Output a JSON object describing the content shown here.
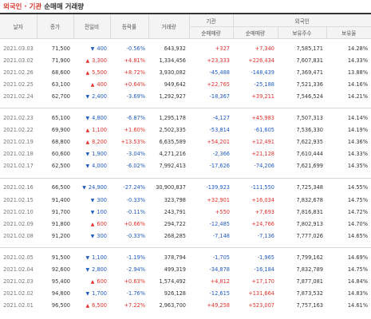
{
  "title": {
    "part1": "외국인 · 기관",
    "part2": "순매매 거래량"
  },
  "header": {
    "date": "날자",
    "close": "종가",
    "change": "전일비",
    "rate": "등락률",
    "volume": "거래량",
    "institution": "기관",
    "foreign": "외국인",
    "inst_net": "순매매량",
    "foreign_net": "순매매량",
    "holdings": "보유주수",
    "holding_rate": "보유율"
  },
  "colors": {
    "up": "#e0312b",
    "down": "#1e5bbf"
  },
  "groups": [
    [
      {
        "date": "2021.03.03",
        "close": "71,500",
        "dir": "down",
        "change": "400",
        "rate": "-0.56%",
        "volume": "643,932",
        "inst": "+327",
        "foreign": "+7,340",
        "holdings": "7,585,171",
        "hrate": "14.28%"
      },
      {
        "date": "2021.03.02",
        "close": "71,900",
        "dir": "up",
        "change": "3,300",
        "rate": "+4.81%",
        "volume": "1,334,456",
        "inst": "+23,333",
        "foreign": "+226,434",
        "holdings": "7,607,831",
        "hrate": "14.33%"
      },
      {
        "date": "2021.02.26",
        "close": "68,600",
        "dir": "up",
        "change": "5,500",
        "rate": "+8.72%",
        "volume": "3,930,082",
        "inst": "-45,488",
        "foreign": "-148,439",
        "holdings": "7,369,471",
        "hrate": "13.88%"
      },
      {
        "date": "2021.02.25",
        "close": "63,100",
        "dir": "up",
        "change": "400",
        "rate": "+0.64%",
        "volume": "949,642",
        "inst": "+22,765",
        "foreign": "-25,188",
        "holdings": "7,521,336",
        "hrate": "14.16%"
      },
      {
        "date": "2021.02.24",
        "close": "62,700",
        "dir": "down",
        "change": "2,400",
        "rate": "-3.69%",
        "volume": "1,292,927",
        "inst": "-18,367",
        "foreign": "+39,211",
        "holdings": "7,546,524",
        "hrate": "14.21%"
      }
    ],
    [
      {
        "date": "2021.02.23",
        "close": "65,100",
        "dir": "down",
        "change": "4,800",
        "rate": "-6.87%",
        "volume": "1,295,178",
        "inst": "-4,127",
        "foreign": "+45,983",
        "holdings": "7,507,313",
        "hrate": "14.14%"
      },
      {
        "date": "2021.02.22",
        "close": "69,900",
        "dir": "up",
        "change": "1,100",
        "rate": "+1.60%",
        "volume": "2,502,335",
        "inst": "-53,814",
        "foreign": "-61,605",
        "holdings": "7,536,330",
        "hrate": "14.19%"
      },
      {
        "date": "2021.02.19",
        "close": "68,800",
        "dir": "up",
        "change": "8,200",
        "rate": "+13.53%",
        "volume": "6,635,589",
        "inst": "+54,201",
        "foreign": "+12,491",
        "holdings": "7,622,935",
        "hrate": "14.36%"
      },
      {
        "date": "2021.02.18",
        "close": "60,600",
        "dir": "down",
        "change": "1,900",
        "rate": "-3.04%",
        "volume": "4,271,216",
        "inst": "-2,366",
        "foreign": "+21,128",
        "holdings": "7,610,444",
        "hrate": "14.33%"
      },
      {
        "date": "2021.02.17",
        "close": "62,500",
        "dir": "down",
        "change": "4,000",
        "rate": "-6.02%",
        "volume": "7,992,413",
        "inst": "-17,626",
        "foreign": "-74,206",
        "holdings": "7,621,699",
        "hrate": "14.35%"
      }
    ],
    [
      {
        "date": "2021.02.16",
        "close": "66,500",
        "dir": "down",
        "change": "24,900",
        "rate": "-27.24%",
        "volume": "30,900,837",
        "inst": "-139,923",
        "foreign": "-111,550",
        "holdings": "7,725,348",
        "hrate": "14.55%"
      },
      {
        "date": "2021.02.15",
        "close": "91,400",
        "dir": "down",
        "change": "300",
        "rate": "-0.33%",
        "volume": "323,798",
        "inst": "+32,901",
        "foreign": "+16,034",
        "holdings": "7,832,678",
        "hrate": "14.75%"
      },
      {
        "date": "2021.02.10",
        "close": "91,700",
        "dir": "down",
        "change": "100",
        "rate": "-0.11%",
        "volume": "243,791",
        "inst": "+550",
        "foreign": "+7,693",
        "holdings": "7,816,831",
        "hrate": "14.72%"
      },
      {
        "date": "2021.02.09",
        "close": "91,800",
        "dir": "up",
        "change": "600",
        "rate": "+0.66%",
        "volume": "294,722",
        "inst": "-12,485",
        "foreign": "+24,766",
        "holdings": "7,802,913",
        "hrate": "14.70%"
      },
      {
        "date": "2021.02.08",
        "close": "91,200",
        "dir": "down",
        "change": "300",
        "rate": "-0.33%",
        "volume": "268,285",
        "inst": "-7,148",
        "foreign": "-7,136",
        "holdings": "7,777,026",
        "hrate": "14.65%"
      }
    ],
    [
      {
        "date": "2021.02.05",
        "close": "91,500",
        "dir": "down",
        "change": "1,100",
        "rate": "-1.19%",
        "volume": "378,794",
        "inst": "-1,705",
        "foreign": "-1,965",
        "holdings": "7,799,162",
        "hrate": "14.69%"
      },
      {
        "date": "2021.02.04",
        "close": "92,600",
        "dir": "down",
        "change": "2,800",
        "rate": "-2.94%",
        "volume": "499,319",
        "inst": "-34,878",
        "foreign": "-16,184",
        "holdings": "7,832,789",
        "hrate": "14.75%"
      },
      {
        "date": "2021.02.03",
        "close": "95,400",
        "dir": "up",
        "change": "600",
        "rate": "+0.63%",
        "volume": "1,574,492",
        "inst": "+4,812",
        "foreign": "+17,170",
        "holdings": "7,877,081",
        "hrate": "14.84%"
      },
      {
        "date": "2021.02.02",
        "close": "94,800",
        "dir": "down",
        "change": "1,700",
        "rate": "-1.76%",
        "volume": "926,128",
        "inst": "-12,615",
        "foreign": "+131,664",
        "holdings": "7,873,532",
        "hrate": "14.83%"
      },
      {
        "date": "2021.02.01",
        "close": "96,500",
        "dir": "up",
        "change": "6,500",
        "rate": "+7.22%",
        "volume": "2,963,700",
        "inst": "+49,258",
        "foreign": "+523,007",
        "holdings": "7,757,163",
        "hrate": "14.61%"
      }
    ]
  ]
}
